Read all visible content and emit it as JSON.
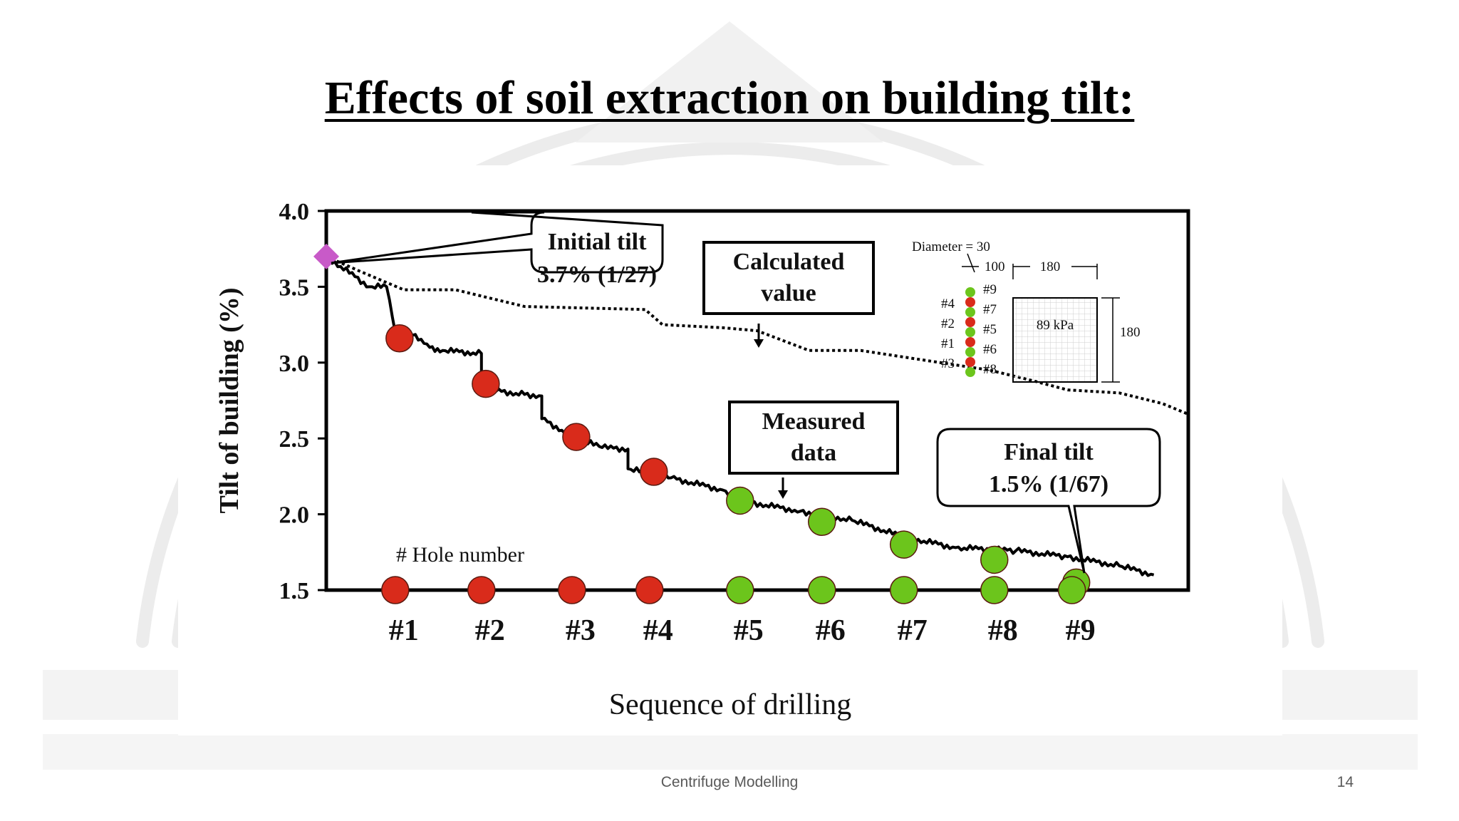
{
  "slide": {
    "title": "Effects of soil extraction on building tilt:",
    "footer": "Centrifuge Modelling",
    "page_number": "14"
  },
  "colors": {
    "red_marker": "#d92b1b",
    "green_marker": "#6cc51c",
    "initial_marker": "#c85ac8",
    "line": "#000000",
    "watermark": "#e6e6e6"
  },
  "chart_data": {
    "type": "line",
    "ylabel": "Tilt of building (%)",
    "xlabel": "Sequence of drilling",
    "ylim": [
      1.5,
      4.0
    ],
    "yticks": [
      "4.0",
      "3.5",
      "3.0",
      "2.5",
      "2.0",
      "1.5"
    ],
    "categories": [
      "#1",
      "#2",
      "#3",
      "#4",
      "#5",
      "#6",
      "#7",
      "#8",
      "#9"
    ],
    "hole_note": "# Hole number",
    "initial_tilt": {
      "value": 3.7,
      "label_line1": "Initial tilt",
      "label_line2": "3.7% (1/27)"
    },
    "final_tilt": {
      "value": 1.55,
      "label_line1": "Final tilt",
      "label_line2": "1.5% (1/67)"
    },
    "series": [
      {
        "name": "Calculated value",
        "label_line1": "Calculated",
        "label_line2": "value",
        "style": "dotted",
        "x": [
          0,
          0.4,
          0.9,
          1.5,
          2.3,
          3.7,
          3.9,
          4.6,
          5.0,
          5.6,
          6.2,
          7.7,
          8.2,
          8.6,
          9.2,
          9.7,
          10.0
        ],
        "y": [
          3.7,
          3.6,
          3.48,
          3.48,
          3.37,
          3.35,
          3.25,
          3.23,
          3.21,
          3.08,
          3.08,
          2.95,
          2.88,
          2.82,
          2.8,
          2.73,
          2.66
        ]
      },
      {
        "name": "Measured data",
        "label_line1": "Measured",
        "label_line2": "data",
        "style": "noisy-solid",
        "x": [
          0,
          0.5,
          0.7,
          0.8,
          1.0,
          1.2,
          1.35,
          1.8,
          1.8,
          1.9,
          2.3,
          2.5,
          2.5,
          2.9,
          3.2,
          3.5,
          3.5,
          4.0,
          4.6,
          4.8,
          5.5,
          6.1,
          6.7,
          7.3,
          8.0,
          8.6,
          9.2,
          9.6
        ],
        "y": [
          3.7,
          3.5,
          3.5,
          3.2,
          3.18,
          3.1,
          3.08,
          3.06,
          2.9,
          2.82,
          2.79,
          2.78,
          2.63,
          2.5,
          2.44,
          2.43,
          2.3,
          2.24,
          2.16,
          2.09,
          2.02,
          1.96,
          1.85,
          1.78,
          1.76,
          1.72,
          1.66,
          1.6
        ]
      }
    ],
    "drill_markers": [
      {
        "x": 0.85,
        "y": 3.16,
        "color": "red"
      },
      {
        "x": 1.85,
        "y": 2.86,
        "color": "red"
      },
      {
        "x": 2.9,
        "y": 2.51,
        "color": "red"
      },
      {
        "x": 3.8,
        "y": 2.28,
        "color": "red"
      },
      {
        "x": 4.8,
        "y": 2.09,
        "color": "green"
      },
      {
        "x": 5.75,
        "y": 1.95,
        "color": "green"
      },
      {
        "x": 6.7,
        "y": 1.8,
        "color": "green"
      },
      {
        "x": 7.75,
        "y": 1.7,
        "color": "green"
      },
      {
        "x": 8.7,
        "y": 1.55,
        "color": "green"
      }
    ],
    "hole_markers": [
      {
        "x": 0.8,
        "color": "red"
      },
      {
        "x": 1.8,
        "color": "red"
      },
      {
        "x": 2.85,
        "color": "red"
      },
      {
        "x": 3.75,
        "color": "red"
      },
      {
        "x": 4.8,
        "color": "green"
      },
      {
        "x": 5.75,
        "color": "green"
      },
      {
        "x": 6.7,
        "color": "green"
      },
      {
        "x": 7.75,
        "color": "green"
      },
      {
        "x": 8.65,
        "color": "green"
      }
    ],
    "inset": {
      "diameter_label": "Diameter = 30",
      "spacing_label": "100",
      "width_label": "180",
      "height_label": "180",
      "pressure_label": "89 kPa",
      "left_labels": [
        "#4",
        "#2",
        "#1",
        "#3"
      ],
      "right_labels": [
        "#9",
        "#7",
        "#5",
        "#6",
        "#8"
      ]
    }
  }
}
